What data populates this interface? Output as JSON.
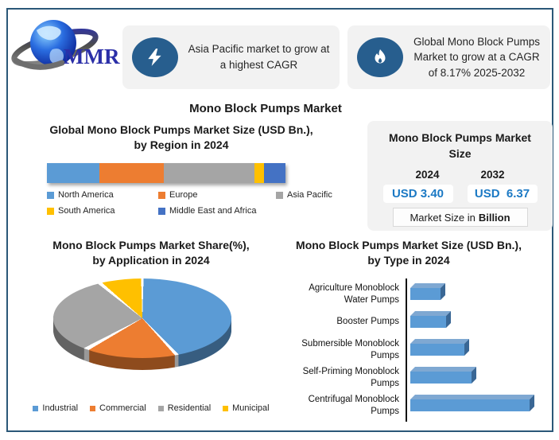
{
  "page": {
    "title": "Mono Block Pumps Market"
  },
  "brand": {
    "logo_text": "MMR"
  },
  "callouts": [
    {
      "icon": "lightning-icon",
      "text": "Asia Pacific market to grow at a highest CAGR"
    },
    {
      "icon": "flame-icon",
      "text": "Global Mono Block Pumps Market to grow at a CAGR of 8.17% 2025-2032"
    }
  ],
  "market_size_box": {
    "title": "Mono Block Pumps Market Size",
    "years": [
      {
        "year": "2024",
        "value": "USD 3.40"
      },
      {
        "year": "2032",
        "value": "USD  6.37"
      }
    ],
    "footnote": {
      "prefix": "Market Size in",
      "bold": "Billion"
    },
    "value_color": "#1b79c4"
  },
  "chart_data": [
    {
      "id": "market-size-by-region-2024",
      "type": "bar",
      "variant": "stacked-horizontal",
      "title_lines": [
        "Global Mono Block Pumps Market Size (USD Bn.),",
        "by Region in 2024"
      ],
      "categories": [
        "North America",
        "Europe",
        "Asia Pacific",
        "South America",
        "Middle East and Africa"
      ],
      "values_pct_of_total": [
        22,
        27,
        38,
        4,
        9
      ],
      "colors": [
        "#5B9BD5",
        "#ED7D31",
        "#A5A5A5",
        "#FFC000",
        "#4472C4"
      ],
      "axis": "unlabeled",
      "legend_position": "bottom"
    },
    {
      "id": "market-share-by-application-2024",
      "type": "pie",
      "style": "3d",
      "title_lines": [
        "Mono Block Pumps Market Share(%),",
        "by Application in 2024"
      ],
      "labels": [
        "Industrial",
        "Commercial",
        "Residential",
        "Municipal"
      ],
      "values_pct": [
        38,
        29,
        19,
        14
      ],
      "colors": [
        "#5B9BD5",
        "#ED7D31",
        "#A5A5A5",
        "#FFC000"
      ],
      "start_angle_deg": 0,
      "legend_position": "bottom"
    },
    {
      "id": "market-size-by-type-2024",
      "type": "bar",
      "variant": "horizontal-3d",
      "title_lines": [
        "Mono Block Pumps Market Size (USD Bn.),",
        "by Type in 2024"
      ],
      "categories": [
        "Agriculture Monoblock Water Pumps",
        "Booster Pumps",
        "Submersible Monoblock Pumps",
        "Self-Priming Monoblock Pumps",
        "Centrifugal Monoblock Pumps"
      ],
      "values_relative_pct_of_max": [
        25,
        30,
        45,
        51,
        100
      ],
      "bar_color": "#5B9BD5",
      "bar_color_top": "#7FA8D2",
      "bar_color_side": "#3A6795",
      "axis": "unlabeled"
    }
  ]
}
